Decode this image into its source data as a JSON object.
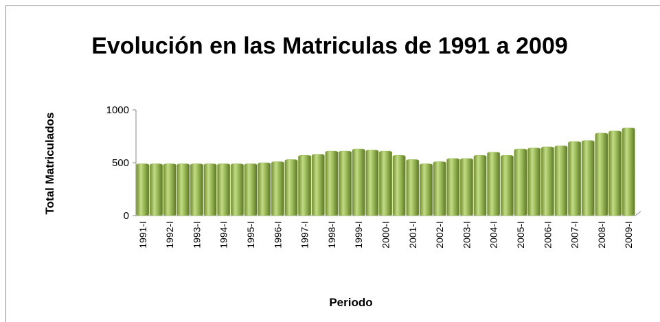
{
  "chart_data": {
    "type": "bar",
    "title": "Evolución en las Matriculas de 1991 a 2009",
    "x_label": "Periodo",
    "y_label": "Total Matriculados",
    "categories": [
      "1991-I",
      null,
      "1992-I",
      null,
      "1993-I",
      null,
      "1994-I",
      null,
      "1995-I",
      null,
      "1996-I",
      null,
      "1997-I",
      null,
      "1998-I",
      null,
      "1999-I",
      null,
      "2000-I",
      null,
      "2001-I",
      null,
      "2002-I",
      null,
      "2003-I",
      null,
      "2004-I",
      null,
      "2005-I",
      null,
      "2006-I",
      null,
      "2007-I",
      null,
      "2008-I",
      null,
      "2009-I"
    ],
    "values": [
      490,
      490,
      490,
      490,
      490,
      490,
      490,
      490,
      490,
      500,
      510,
      530,
      570,
      580,
      610,
      610,
      630,
      620,
      610,
      570,
      530,
      490,
      510,
      540,
      540,
      570,
      600,
      570,
      630,
      640,
      650,
      660,
      700,
      710,
      780,
      800,
      830
    ],
    "color": "#9bbb59",
    "ylim": [
      0,
      1000
    ],
    "yticks": [
      0,
      500,
      1000
    ],
    "grid": false
  }
}
